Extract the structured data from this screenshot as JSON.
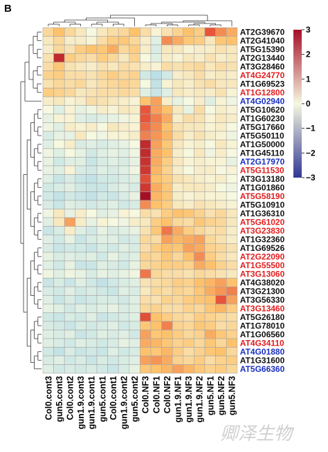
{
  "panel_label": "B",
  "watermark": "卿泽生物",
  "colors": {
    "low": "#3050a0",
    "mid": "#f4f8ec",
    "high": "#b51e24",
    "row_label_red": "#e11d1d",
    "row_label_blue": "#1a2fc0",
    "row_label_black": "#111111",
    "cell_border": "#a7a7a7"
  },
  "chart_data": {
    "type": "heatmap",
    "title": "",
    "xlabel": "",
    "ylabel": "",
    "color_scale": {
      "min": -3,
      "max": 3,
      "ticks": [
        3,
        2,
        1,
        0,
        -1,
        -2,
        -3
      ]
    },
    "columns": [
      "Col0.cont3",
      "gun5.cont3",
      "Col0.cont2",
      "gun1.9.cont3",
      "gun1.9.cont1",
      "gun5.cont1",
      "Col0.cont1",
      "gun1.9.cont2",
      "gun5.cont2",
      "Col0.NF3",
      "Col0.NF1",
      "Col0.NF2",
      "gun1.9.NF1",
      "gun1.9.NF3",
      "gun1.9.NF2",
      "gun5.NF1",
      "gun5.NF2",
      "gun5.NF3"
    ],
    "rows": [
      {
        "label": "AT2G39670",
        "color": "black",
        "values": [
          0.6,
          1.0,
          0.6,
          0.3,
          0.0,
          0.3,
          0.5,
          0.6,
          1.0,
          0.5,
          0.1,
          0.4,
          0.7,
          1.0,
          0.8,
          2.0,
          1.5,
          1.2
        ]
      },
      {
        "label": "AT2G41040",
        "color": "black",
        "values": [
          0.3,
          0.6,
          0.2,
          0.2,
          0.1,
          0.5,
          0.8,
          0.9,
          0.6,
          0.2,
          -0.3,
          1.5,
          1.2,
          0.9,
          0.8,
          0.3,
          0.9,
          1.0
        ]
      },
      {
        "label": "AT5G15390",
        "color": "black",
        "values": [
          0.2,
          0.6,
          0.4,
          0.8,
          1.0,
          0.9,
          1.2,
          0.6,
          0.8,
          0.2,
          -0.4,
          0.3,
          0.3,
          0.1,
          0.2,
          0.2,
          0.4,
          0.3
        ]
      },
      {
        "label": "AT2G13440",
        "color": "black",
        "values": [
          0.4,
          2.6,
          0.8,
          0.6,
          0.5,
          0.8,
          0.6,
          0.3,
          0.7,
          0.0,
          -0.3,
          0.2,
          0.1,
          0.3,
          0.2,
          0.4,
          0.2,
          0.3
        ]
      },
      {
        "label": "AT3G28460",
        "color": "black",
        "values": [
          0.5,
          0.9,
          0.4,
          0.3,
          0.2,
          0.4,
          0.3,
          0.5,
          0.4,
          0.2,
          0.1,
          0.5,
          0.4,
          0.5,
          0.6,
          0.3,
          0.5,
          0.4
        ]
      },
      {
        "label": "AT4G24770",
        "color": "red",
        "values": [
          0.7,
          0.8,
          0.5,
          0.5,
          0.4,
          0.6,
          0.8,
          0.6,
          0.7,
          -0.5,
          -0.8,
          -0.5,
          0.2,
          0.3,
          0.5,
          0.2,
          0.3,
          0.2
        ]
      },
      {
        "label": "AT1G69523",
        "color": "black",
        "values": [
          0.4,
          0.6,
          0.5,
          0.6,
          0.3,
          0.5,
          0.6,
          0.7,
          0.6,
          0.0,
          -0.7,
          0.1,
          0.3,
          0.2,
          0.4,
          0.5,
          0.3,
          0.3
        ]
      },
      {
        "label": "AT1G12800",
        "color": "red",
        "values": [
          0.8,
          0.7,
          0.6,
          0.3,
          0.4,
          0.5,
          0.5,
          0.6,
          0.5,
          -0.3,
          -0.6,
          -0.3,
          0.3,
          0.2,
          0.3,
          0.2,
          0.4,
          0.1
        ]
      },
      {
        "label": "AT4G02940",
        "color": "blue",
        "values": [
          0.2,
          0.3,
          0.1,
          0.2,
          0.5,
          0.4,
          0.3,
          0.2,
          0.1,
          1.0,
          1.3,
          0.2,
          -0.2,
          0.0,
          0.2,
          -0.3,
          0.1,
          -0.1
        ]
      },
      {
        "label": "AT5G10620",
        "color": "black",
        "values": [
          0.0,
          -0.3,
          0.1,
          -0.2,
          -0.1,
          0.2,
          0.1,
          0.3,
          0.2,
          2.0,
          1.3,
          1.0,
          0.3,
          -0.2,
          0.5,
          0.0,
          0.2,
          0.1
        ]
      },
      {
        "label": "AT1G60230",
        "color": "black",
        "values": [
          -0.2,
          0.1,
          0.1,
          -0.3,
          -0.4,
          -0.3,
          -0.2,
          -0.1,
          0.1,
          2.0,
          1.6,
          1.2,
          0.2,
          0.5,
          0.4,
          0.1,
          0.3,
          0.2
        ]
      },
      {
        "label": "AT5G17660",
        "color": "black",
        "values": [
          -0.1,
          -0.3,
          0.2,
          0.1,
          0.2,
          0.0,
          0.3,
          0.2,
          0.1,
          1.8,
          1.5,
          1.0,
          0.4,
          0.3,
          0.3,
          0.1,
          0.2,
          0.0
        ]
      },
      {
        "label": "AT5G50110",
        "color": "black",
        "values": [
          -0.4,
          -0.2,
          -0.2,
          0.3,
          0.0,
          -0.1,
          0.1,
          0.1,
          0.2,
          1.6,
          1.4,
          1.1,
          0.5,
          0.2,
          0.4,
          0.2,
          0.1,
          -0.1
        ]
      },
      {
        "label": "AT1G50000",
        "color": "black",
        "values": [
          -0.3,
          0.0,
          0.2,
          -0.4,
          -0.3,
          -0.4,
          -0.3,
          -0.2,
          0.0,
          2.6,
          1.3,
          0.9,
          0.3,
          0.1,
          0.2,
          0.0,
          0.3,
          0.1
        ]
      },
      {
        "label": "AT1G45110",
        "color": "black",
        "values": [
          -0.1,
          -0.3,
          0.0,
          -0.2,
          -0.5,
          -0.3,
          -0.2,
          -0.3,
          -0.1,
          2.6,
          1.2,
          1.0,
          0.2,
          0.0,
          0.3,
          -0.1,
          0.2,
          0.0
        ]
      },
      {
        "label": "AT2G17970",
        "color": "blue",
        "values": [
          -0.2,
          -0.5,
          -0.3,
          -0.3,
          -0.6,
          -0.4,
          -0.3,
          -0.4,
          -0.2,
          2.5,
          1.2,
          0.8,
          0.3,
          0.1,
          0.2,
          0.1,
          0.1,
          -0.2
        ]
      },
      {
        "label": "AT5G11530",
        "color": "red",
        "values": [
          -0.2,
          -0.3,
          0.1,
          -0.4,
          -0.5,
          -0.3,
          -0.4,
          -0.3,
          -0.1,
          2.4,
          1.1,
          0.7,
          0.2,
          0.0,
          0.2,
          0.2,
          0.0,
          0.1
        ]
      },
      {
        "label": "AT3G13180",
        "color": "black",
        "values": [
          -0.3,
          -0.6,
          -0.4,
          -0.6,
          -0.7,
          -0.5,
          -0.5,
          -0.4,
          -0.3,
          2.1,
          1.0,
          0.8,
          0.4,
          0.3,
          0.2,
          0.1,
          0.2,
          0.0
        ]
      },
      {
        "label": "AT1G01860",
        "color": "black",
        "values": [
          -0.5,
          -0.4,
          -0.3,
          -0.5,
          -0.6,
          -0.6,
          -0.4,
          -0.3,
          -0.4,
          2.4,
          1.2,
          0.9,
          0.2,
          0.3,
          0.3,
          0.2,
          0.0,
          -0.1
        ]
      },
      {
        "label": "AT5G58190",
        "color": "red",
        "values": [
          -0.5,
          -0.7,
          -0.5,
          -0.6,
          -0.7,
          -0.5,
          -0.6,
          -0.4,
          -0.2,
          3.0,
          1.1,
          0.9,
          0.2,
          0.1,
          0.2,
          0.1,
          0.1,
          0.0
        ]
      },
      {
        "label": "AT5G10910",
        "color": "black",
        "values": [
          -0.4,
          -0.6,
          -0.3,
          -0.4,
          -0.5,
          -0.4,
          -0.3,
          -0.5,
          -0.4,
          1.5,
          1.0,
          0.8,
          0.3,
          0.2,
          0.4,
          0.3,
          0.2,
          0.1
        ]
      },
      {
        "label": "AT1G36310",
        "color": "black",
        "values": [
          -0.1,
          0.3,
          -0.2,
          0.2,
          0.0,
          -0.3,
          -0.2,
          0.1,
          0.0,
          0.5,
          0.4,
          0.8,
          1.0,
          0.9,
          0.7,
          0.4,
          0.6,
          0.3
        ]
      },
      {
        "label": "AT5G61020",
        "color": "red",
        "values": [
          -0.3,
          0.3,
          1.3,
          0.2,
          -0.2,
          0.1,
          0.0,
          -0.1,
          0.2,
          0.3,
          0.8,
          1.0,
          0.6,
          0.5,
          0.9,
          0.7,
          0.6,
          0.3
        ]
      },
      {
        "label": "AT3G23830",
        "color": "red",
        "values": [
          -0.6,
          -0.4,
          0.2,
          -0.3,
          -0.5,
          -0.2,
          -0.4,
          -0.3,
          -0.2,
          0.4,
          0.9,
          1.7,
          1.2,
          0.8,
          0.6,
          0.4,
          0.5,
          0.2
        ]
      },
      {
        "label": "AT1G32360",
        "color": "black",
        "values": [
          -0.3,
          -0.5,
          -0.2,
          -0.6,
          -0.4,
          -0.3,
          -0.3,
          -0.5,
          -0.4,
          0.6,
          0.5,
          1.3,
          1.1,
          1.2,
          1.3,
          0.6,
          0.4,
          0.2
        ]
      },
      {
        "label": "AT1G69526",
        "color": "black",
        "values": [
          -0.4,
          -0.6,
          -0.5,
          -0.5,
          -0.6,
          -0.4,
          -0.5,
          -0.3,
          -0.4,
          0.5,
          0.8,
          1.0,
          0.9,
          1.3,
          1.2,
          0.7,
          0.6,
          0.4
        ]
      },
      {
        "label": "AT2G22090",
        "color": "red",
        "values": [
          -0.2,
          -0.4,
          -0.3,
          -0.4,
          -0.3,
          -0.5,
          -0.2,
          -0.4,
          -0.3,
          0.7,
          0.6,
          0.9,
          0.6,
          1.0,
          1.5,
          0.8,
          0.5,
          0.3
        ]
      },
      {
        "label": "AT1G55500",
        "color": "red",
        "values": [
          -0.3,
          -0.5,
          -0.2,
          -0.6,
          -0.6,
          -0.3,
          -0.4,
          -0.5,
          -0.2,
          0.6,
          0.7,
          0.8,
          0.8,
          0.7,
          1.2,
          1.0,
          0.7,
          0.5
        ]
      },
      {
        "label": "AT3G13060",
        "color": "red",
        "values": [
          -0.1,
          -0.3,
          -0.1,
          -0.2,
          -0.4,
          -0.2,
          -0.3,
          -0.2,
          -0.1,
          1.7,
          0.6,
          0.5,
          0.5,
          0.4,
          0.6,
          0.5,
          0.4,
          0.3
        ]
      },
      {
        "label": "AT4G38020",
        "color": "black",
        "values": [
          -0.6,
          -0.4,
          -0.6,
          -0.3,
          -0.5,
          -0.7,
          -0.5,
          -0.4,
          -0.3,
          0.4,
          0.5,
          0.6,
          0.8,
          0.7,
          1.0,
          1.1,
          1.3,
          1.0
        ]
      },
      {
        "label": "AT3G21300",
        "color": "black",
        "values": [
          -0.4,
          -0.5,
          -0.3,
          -0.5,
          -0.4,
          -0.5,
          -0.6,
          -0.3,
          -0.4,
          0.3,
          0.6,
          0.5,
          0.7,
          0.6,
          0.9,
          1.2,
          1.4,
          1.6
        ]
      },
      {
        "label": "AT3G56330",
        "color": "black",
        "values": [
          -0.3,
          -0.6,
          -0.4,
          -0.6,
          -0.5,
          -0.4,
          -0.4,
          -0.5,
          -0.3,
          0.5,
          0.4,
          0.7,
          0.6,
          0.8,
          0.9,
          1.0,
          2.0,
          1.3
        ]
      },
      {
        "label": "AT3G13460",
        "color": "red",
        "values": [
          -0.2,
          -0.3,
          -0.5,
          -0.3,
          -0.4,
          -0.3,
          -0.2,
          -0.4,
          -0.3,
          0.6,
          0.7,
          0.5,
          0.5,
          0.7,
          0.6,
          0.9,
          1.1,
          0.8
        ]
      },
      {
        "label": "AT5G26180",
        "color": "black",
        "values": [
          -0.5,
          -0.6,
          -0.4,
          -0.5,
          -0.3,
          -0.6,
          -0.5,
          -0.4,
          -0.3,
          2.1,
          1.0,
          0.8,
          0.6,
          0.5,
          0.8,
          0.7,
          0.6,
          0.5
        ]
      },
      {
        "label": "AT1G78010",
        "color": "black",
        "values": [
          -0.4,
          -0.5,
          -0.6,
          -0.4,
          -0.5,
          -0.4,
          -0.3,
          -0.5,
          -0.4,
          0.9,
          1.0,
          1.6,
          0.7,
          0.6,
          0.9,
          0.8,
          0.5,
          0.6
        ]
      },
      {
        "label": "AT1G06560",
        "color": "black",
        "values": [
          -0.3,
          -0.4,
          -0.3,
          -0.6,
          -0.5,
          -0.3,
          -0.4,
          -0.3,
          -0.5,
          1.3,
          0.9,
          1.0,
          0.8,
          0.6,
          0.7,
          1.2,
          0.9,
          0.7
        ]
      },
      {
        "label": "AT4G34110",
        "color": "red",
        "values": [
          -0.3,
          -0.4,
          -0.5,
          -0.3,
          -0.4,
          -0.5,
          -0.4,
          -0.2,
          -0.3,
          1.2,
          1.1,
          0.9,
          0.7,
          0.8,
          0.6,
          0.9,
          0.6,
          1.0
        ]
      },
      {
        "label": "AT4G01880",
        "color": "blue",
        "values": [
          -0.5,
          -0.7,
          -0.4,
          -0.6,
          -0.5,
          -0.6,
          -0.3,
          -0.5,
          -0.4,
          1.0,
          0.9,
          1.1,
          0.8,
          0.5,
          0.7,
          0.9,
          1.0,
          0.6
        ]
      },
      {
        "label": "AT1G31600",
        "color": "black",
        "values": [
          -0.4,
          -0.3,
          -0.5,
          -0.4,
          -0.6,
          -0.4,
          -0.5,
          -0.4,
          -0.3,
          1.3,
          1.4,
          1.2,
          0.7,
          0.6,
          0.8,
          0.5,
          0.7,
          0.8
        ]
      },
      {
        "label": "AT5G66360",
        "color": "blue",
        "values": [
          -0.3,
          -0.5,
          -0.4,
          -0.5,
          -0.4,
          -0.5,
          -0.6,
          -0.4,
          -0.2,
          0.9,
          1.0,
          1.1,
          1.3,
          1.1,
          0.9,
          0.7,
          0.8,
          0.6
        ]
      }
    ]
  }
}
